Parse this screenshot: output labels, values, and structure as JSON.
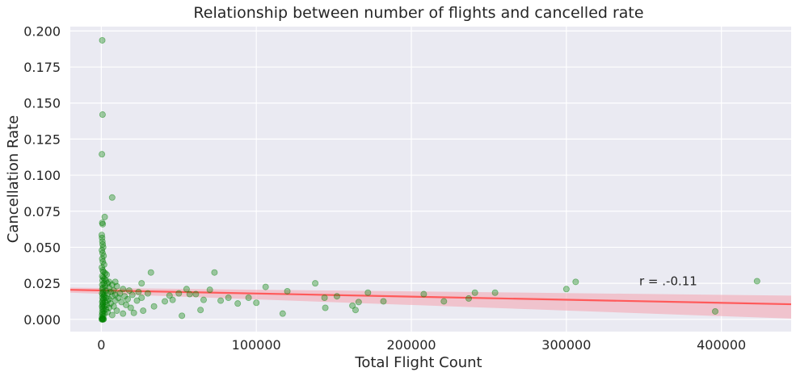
{
  "chart_data": {
    "type": "scatter",
    "title": "Relationship between number of flights and cancelled rate",
    "xlabel": "Total Flight Count",
    "ylabel": "Cancellation Rate",
    "xlim": [
      -20000,
      445000
    ],
    "ylim": [
      -0.0085,
      0.203
    ],
    "xticks": [
      0,
      100000,
      200000,
      300000,
      400000
    ],
    "yticks": [
      0.0,
      0.025,
      0.05,
      0.075,
      0.1,
      0.125,
      0.15,
      0.175,
      0.2
    ],
    "xtick_labels": [
      "0",
      "100000",
      "200000",
      "300000",
      "400000"
    ],
    "ytick_labels": [
      "0.000",
      "0.025",
      "0.050",
      "0.075",
      "0.100",
      "0.125",
      "0.150",
      "0.175",
      "0.200"
    ],
    "grid": true,
    "background": "#eaeaf2",
    "point_color": "#008000",
    "line_color": "#ff5a5a",
    "band_color": "#f4a3ae",
    "annotation": {
      "text": "r = .-0.11",
      "x": 347000,
      "y": 0.0265
    },
    "regression": {
      "x": [
        -20000,
        445000
      ],
      "y": [
        0.0205,
        0.0105
      ],
      "ci_lower": [
        0.0185,
        0.0005
      ],
      "ci_upper": [
        0.022,
        0.0165
      ]
    },
    "points": [
      [
        600,
        0.1935
      ],
      [
        800,
        0.142
      ],
      [
        400,
        0.1145
      ],
      [
        7000,
        0.0845
      ],
      [
        2200,
        0.071
      ],
      [
        600,
        0.067
      ],
      [
        900,
        0.066
      ],
      [
        300,
        0.0585
      ],
      [
        500,
        0.0565
      ],
      [
        700,
        0.054
      ],
      [
        900,
        0.052
      ],
      [
        1200,
        0.05
      ],
      [
        400,
        0.048
      ],
      [
        800,
        0.046
      ],
      [
        1500,
        0.044
      ],
      [
        600,
        0.042
      ],
      [
        1000,
        0.04
      ],
      [
        1800,
        0.038
      ],
      [
        400,
        0.036
      ],
      [
        900,
        0.034
      ],
      [
        1400,
        0.033
      ],
      [
        2500,
        0.032
      ],
      [
        3500,
        0.031
      ],
      [
        600,
        0.03
      ],
      [
        1200,
        0.029
      ],
      [
        2000,
        0.028
      ],
      [
        800,
        0.027
      ],
      [
        3000,
        0.027
      ],
      [
        5000,
        0.026
      ],
      [
        9000,
        0.026
      ],
      [
        1500,
        0.025
      ],
      [
        4000,
        0.025
      ],
      [
        7000,
        0.024
      ],
      [
        600,
        0.024
      ],
      [
        2500,
        0.023
      ],
      [
        10000,
        0.023
      ],
      [
        1000,
        0.022
      ],
      [
        5000,
        0.022
      ],
      [
        14000,
        0.021
      ],
      [
        700,
        0.021
      ],
      [
        3000,
        0.02
      ],
      [
        8000,
        0.02
      ],
      [
        18000,
        0.02
      ],
      [
        1200,
        0.019
      ],
      [
        6000,
        0.019
      ],
      [
        24000,
        0.019
      ],
      [
        500,
        0.018
      ],
      [
        4000,
        0.018
      ],
      [
        12000,
        0.018
      ],
      [
        900,
        0.017
      ],
      [
        2000,
        0.017
      ],
      [
        9000,
        0.017
      ],
      [
        20000,
        0.017
      ],
      [
        1600,
        0.016
      ],
      [
        7000,
        0.016
      ],
      [
        15000,
        0.016
      ],
      [
        700,
        0.015
      ],
      [
        3000,
        0.015
      ],
      [
        11000,
        0.015
      ],
      [
        26000,
        0.015
      ],
      [
        1300,
        0.014
      ],
      [
        5000,
        0.014
      ],
      [
        17000,
        0.014
      ],
      [
        900,
        0.013
      ],
      [
        4000,
        0.013
      ],
      [
        9000,
        0.013
      ],
      [
        600,
        0.012
      ],
      [
        2500,
        0.012
      ],
      [
        13000,
        0.012
      ],
      [
        1100,
        0.011
      ],
      [
        6000,
        0.011
      ],
      [
        800,
        0.01
      ],
      [
        3500,
        0.01
      ],
      [
        16000,
        0.01
      ],
      [
        500,
        0.009
      ],
      [
        2000,
        0.009
      ],
      [
        8000,
        0.009
      ],
      [
        1000,
        0.008
      ],
      [
        5000,
        0.008
      ],
      [
        19000,
        0.008
      ],
      [
        700,
        0.007
      ],
      [
        3000,
        0.007
      ],
      [
        1500,
        0.006
      ],
      [
        10000,
        0.006
      ],
      [
        600,
        0.005
      ],
      [
        4000,
        0.005
      ],
      [
        900,
        0.004
      ],
      [
        2000,
        0.004
      ],
      [
        14000,
        0.004
      ],
      [
        500,
        0.003
      ],
      [
        7000,
        0.003
      ],
      [
        1200,
        0.002
      ],
      [
        400,
        0.001
      ],
      [
        800,
        0.0005
      ],
      [
        1500,
        0.0002
      ],
      [
        600,
        0.0
      ],
      [
        900,
        0.0
      ],
      [
        1300,
        0.0
      ],
      [
        300,
        0.0
      ],
      [
        26000,
        0.025
      ],
      [
        32000,
        0.0325
      ],
      [
        34000,
        0.009
      ],
      [
        27000,
        0.006
      ],
      [
        30000,
        0.018
      ],
      [
        41000,
        0.0125
      ],
      [
        44000,
        0.0165
      ],
      [
        46000,
        0.0135
      ],
      [
        50000,
        0.018
      ],
      [
        52000,
        0.0025
      ],
      [
        55000,
        0.021
      ],
      [
        57000,
        0.0175
      ],
      [
        61000,
        0.0175
      ],
      [
        64000,
        0.0065
      ],
      [
        66000,
        0.0135
      ],
      [
        70000,
        0.0205
      ],
      [
        73000,
        0.0325
      ],
      [
        77000,
        0.013
      ],
      [
        82000,
        0.015
      ],
      [
        88000,
        0.011
      ],
      [
        95000,
        0.015
      ],
      [
        100000,
        0.0115
      ],
      [
        106000,
        0.0225
      ],
      [
        117000,
        0.004
      ],
      [
        120000,
        0.0195
      ],
      [
        138000,
        0.025
      ],
      [
        144000,
        0.015
      ],
      [
        144500,
        0.008
      ],
      [
        152000,
        0.016
      ],
      [
        162000,
        0.0095
      ],
      [
        164000,
        0.0065
      ],
      [
        166000,
        0.012
      ],
      [
        172000,
        0.0185
      ],
      [
        182000,
        0.0125
      ],
      [
        208000,
        0.0175
      ],
      [
        221000,
        0.0125
      ],
      [
        237000,
        0.0145
      ],
      [
        241000,
        0.0185
      ],
      [
        254000,
        0.0185
      ],
      [
        300000,
        0.021
      ],
      [
        306000,
        0.026
      ],
      [
        396000,
        0.0055
      ],
      [
        423000,
        0.0265
      ],
      [
        23000,
        0.013
      ],
      [
        21000,
        0.0045
      ]
    ]
  }
}
